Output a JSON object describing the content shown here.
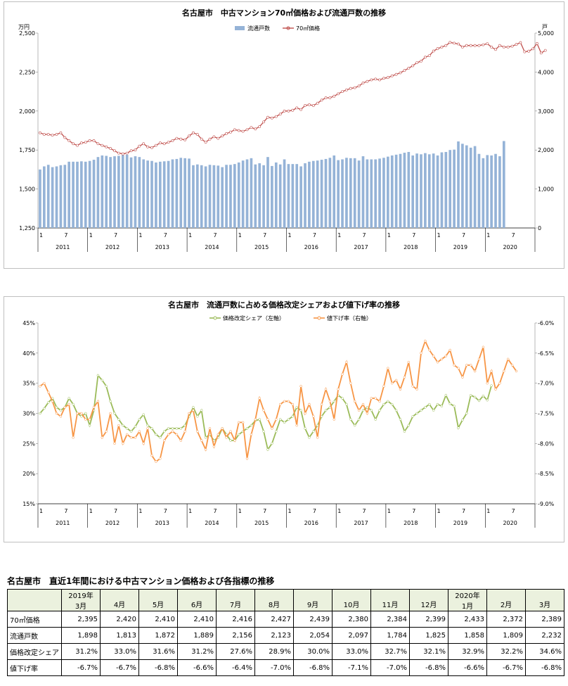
{
  "chart_data": [
    {
      "type": "bar+line",
      "title": "名古屋市　中古マンション70㎡価格および流通戸数の推移",
      "left_unit": "万円",
      "right_unit": "戸",
      "left_ylim": [
        1250,
        2500
      ],
      "left_ticks": [
        "1,250",
        "1,500",
        "1,750",
        "2,000",
        "2,250",
        "2,500"
      ],
      "right_ylim": [
        0,
        5000
      ],
      "right_ticks": [
        "0",
        "1,000",
        "2,000",
        "3,000",
        "4,000",
        "5,000"
      ],
      "legend": [
        "流通戸数",
        "70㎡価格"
      ],
      "x_month_labels": [
        "1",
        "7",
        "1",
        "7",
        "1",
        "7",
        "1",
        "7",
        "1",
        "7",
        "1",
        "7",
        "1",
        "7",
        "1",
        "7",
        "1",
        "7",
        "1",
        "7"
      ],
      "x_year_labels": [
        "2011",
        "2012",
        "2013",
        "2014",
        "2015",
        "2016",
        "2017",
        "2018",
        "2019",
        "2020"
      ],
      "series": [
        {
          "name": "流通戸数",
          "kind": "bar",
          "axis": "right",
          "color": "#95b3d7",
          "values": [
            1500,
            1580,
            1620,
            1560,
            1580,
            1610,
            1620,
            1700,
            1700,
            1700,
            1710,
            1700,
            1720,
            1750,
            1820,
            1860,
            1850,
            1820,
            1840,
            1850,
            1870,
            1880,
            1810,
            1840,
            1820,
            1760,
            1730,
            1720,
            1680,
            1700,
            1710,
            1720,
            1760,
            1770,
            1800,
            1790,
            1780,
            1610,
            1630,
            1610,
            1580,
            1620,
            1610,
            1600,
            1560,
            1620,
            1620,
            1640,
            1680,
            1730,
            1760,
            1790,
            1630,
            1660,
            1610,
            1820,
            1590,
            1680,
            1630,
            1760,
            1640,
            1640,
            1640,
            1580,
            1660,
            1700,
            1720,
            1730,
            1750,
            1770,
            1800,
            1860,
            1740,
            1760,
            1800,
            1790,
            1790,
            1730,
            1840,
            1760,
            1760,
            1760,
            1780,
            1800,
            1830,
            1860,
            1880,
            1900,
            1930,
            1950,
            1860,
            1910,
            1890,
            1920,
            1890,
            1910,
            1860,
            1940,
            1950,
            2000,
            2010,
            2220,
            2160,
            2120,
            2060,
            2100,
            1900,
            1790,
            1870,
            1860,
            1900,
            1840,
            2230
          ]
        },
        {
          "name": "70㎡価格",
          "kind": "line",
          "axis": "left",
          "color": "#c0504d",
          "values": [
            1860,
            1850,
            1850,
            1845,
            1850,
            1860,
            1830,
            1810,
            1790,
            1780,
            1795,
            1800,
            1810,
            1810,
            1790,
            1780,
            1770,
            1760,
            1745,
            1730,
            1725,
            1730,
            1745,
            1750,
            1775,
            1790,
            1770,
            1765,
            1780,
            1795,
            1790,
            1800,
            1810,
            1825,
            1820,
            1815,
            1840,
            1860,
            1850,
            1820,
            1800,
            1820,
            1835,
            1825,
            1840,
            1855,
            1865,
            1880,
            1875,
            1870,
            1880,
            1895,
            1885,
            1900,
            1930,
            1960,
            1955,
            1965,
            1980,
            2000,
            2000,
            2005,
            2020,
            2010,
            2035,
            2040,
            2035,
            2050,
            2070,
            2085,
            2085,
            2095,
            2110,
            2125,
            2135,
            2145,
            2150,
            2160,
            2180,
            2190,
            2200,
            2205,
            2200,
            2210,
            2215,
            2225,
            2235,
            2245,
            2260,
            2275,
            2290,
            2310,
            2320,
            2345,
            2355,
            2385,
            2400,
            2410,
            2420,
            2440,
            2435,
            2430,
            2410,
            2420,
            2420,
            2420,
            2420,
            2425,
            2432,
            2410,
            2395,
            2420,
            2410,
            2410,
            2416,
            2427,
            2439,
            2380,
            2384,
            2399,
            2433,
            2372,
            2389
          ]
        }
      ]
    },
    {
      "type": "line",
      "title": "名古屋市　流通戸数に占める価格改定シェアおよび値下げ率の推移",
      "left_ylim": [
        15,
        45
      ],
      "left_ticks": [
        "15%",
        "20%",
        "25%",
        "30%",
        "35%",
        "40%",
        "45%"
      ],
      "right_ylim": [
        -9.0,
        -6.0
      ],
      "right_ticks": [
        "-9.0%",
        "-8.5%",
        "-8.0%",
        "-7.5%",
        "-7.0%",
        "-6.5%",
        "-6.0%"
      ],
      "legend": [
        "価格改定シェア（左軸）",
        "値下げ率（右軸）"
      ],
      "x_month_labels": [
        "1",
        "7",
        "1",
        "7",
        "1",
        "7",
        "1",
        "7",
        "1",
        "7",
        "1",
        "7",
        "1",
        "7",
        "1",
        "7",
        "1",
        "7",
        "1",
        "7"
      ],
      "x_year_labels": [
        "2011",
        "2012",
        "2013",
        "2014",
        "2015",
        "2016",
        "2017",
        "2018",
        "2019",
        "2020"
      ],
      "series": [
        {
          "name": "価格改定シェア（左軸）",
          "axis": "left",
          "color": "#9bbb59",
          "values": [
            30.0,
            30.8,
            31.8,
            32.5,
            31.0,
            30.5,
            31.0,
            32.5,
            31.5,
            30.0,
            29.5,
            30.0,
            28.0,
            30.5,
            36.3,
            35.5,
            34.5,
            32.0,
            30.0,
            29.0,
            28.0,
            27.5,
            27.0,
            27.8,
            29.0,
            29.8,
            28.0,
            27.5,
            26.5,
            26.0,
            27.0,
            27.5,
            27.5,
            27.5,
            27.5,
            28.0,
            29.5,
            31.0,
            29.5,
            30.5,
            26.0,
            26.5,
            25.5,
            26.0,
            27.5,
            26.5,
            25.5,
            25.5,
            26.5,
            27.0,
            27.5,
            28.0,
            28.8,
            29.0,
            27.0,
            24.0,
            25.0,
            27.0,
            29.0,
            28.5,
            29.0,
            29.5,
            31.0,
            30.5,
            27.5,
            26.0,
            27.0,
            28.0,
            29.5,
            30.5,
            31.0,
            32.0,
            33.0,
            32.5,
            31.5,
            29.0,
            28.0,
            29.0,
            30.5,
            31.0,
            30.5,
            29.0,
            30.5,
            31.5,
            32.0,
            31.5,
            30.5,
            29.0,
            27.0,
            28.0,
            29.5,
            30.0,
            30.5,
            31.0,
            31.5,
            30.5,
            31.5,
            31.2,
            33.0,
            31.6,
            31.2,
            27.6,
            28.9,
            30.0,
            33.0,
            32.7,
            32.1,
            32.9,
            32.2,
            34.6
          ]
        },
        {
          "name": "値下げ率（右軸）",
          "axis": "right",
          "color": "#f79646",
          "values": [
            -7.05,
            -7.0,
            -7.15,
            -7.3,
            -7.5,
            -7.55,
            -7.4,
            -7.35,
            -7.9,
            -7.5,
            -7.5,
            -7.6,
            -7.6,
            -7.4,
            -7.3,
            -7.9,
            -7.8,
            -7.5,
            -8.0,
            -7.7,
            -8.0,
            -7.85,
            -7.9,
            -7.9,
            -7.8,
            -8.0,
            -7.75,
            -8.2,
            -8.3,
            -8.25,
            -7.95,
            -7.85,
            -7.8,
            -7.85,
            -7.95,
            -7.8,
            -7.5,
            -7.45,
            -7.8,
            -7.95,
            -8.1,
            -7.75,
            -8.05,
            -7.85,
            -7.75,
            -7.9,
            -7.8,
            -7.95,
            -7.65,
            -7.65,
            -8.25,
            -7.85,
            -7.6,
            -7.25,
            -7.45,
            -7.6,
            -7.75,
            -7.6,
            -7.35,
            -7.3,
            -7.3,
            -7.35,
            -7.7,
            -7.05,
            -7.5,
            -7.35,
            -7.55,
            -7.9,
            -7.35,
            -7.1,
            -7.3,
            -7.6,
            -7.1,
            -6.85,
            -6.65,
            -7.0,
            -7.3,
            -7.45,
            -7.35,
            -7.5,
            -7.25,
            -7.25,
            -7.3,
            -7.05,
            -6.75,
            -7.0,
            -6.95,
            -7.1,
            -6.9,
            -6.65,
            -7.05,
            -7.1,
            -6.5,
            -6.3,
            -6.45,
            -6.55,
            -6.65,
            -6.6,
            -6.55,
            -6.45,
            -6.7,
            -6.75,
            -6.9,
            -6.7,
            -6.7,
            -6.8,
            -6.6,
            -6.4,
            -7.0,
            -6.8,
            -7.1,
            -7.0,
            -6.8,
            -6.6,
            -6.7,
            -6.8
          ]
        }
      ]
    }
  ],
  "table": {
    "title": "名古屋市　直近1年間における中古マンション価格および各指標の推移",
    "header": {
      "year_labels": [
        "2019年",
        "",
        "",
        "",
        "",
        "",
        "",
        "",
        "",
        "",
        "2020年",
        "",
        ""
      ],
      "months": [
        "3月",
        "4月",
        "5月",
        "6月",
        "7月",
        "8月",
        "9月",
        "10月",
        "11月",
        "12月",
        "1月",
        "2月",
        "3月"
      ]
    },
    "rows": [
      {
        "label": "70㎡価格",
        "values": [
          "2,395",
          "2,420",
          "2,410",
          "2,410",
          "2,416",
          "2,427",
          "2,439",
          "2,380",
          "2,384",
          "2,399",
          "2,433",
          "2,372",
          "2,389"
        ]
      },
      {
        "label": "流通戸数",
        "values": [
          "1,898",
          "1,813",
          "1,872",
          "1,889",
          "2,156",
          "2,123",
          "2,054",
          "2,097",
          "1,784",
          "1,825",
          "1,858",
          "1,809",
          "2,232"
        ]
      },
      {
        "label": "価格改定シェア",
        "values": [
          "31.2%",
          "33.0%",
          "31.6%",
          "31.2%",
          "27.6%",
          "28.9%",
          "30.0%",
          "33.0%",
          "32.7%",
          "32.1%",
          "32.9%",
          "32.2%",
          "34.6%"
        ]
      },
      {
        "label": "値下げ率",
        "values": [
          "-6.7%",
          "-6.7%",
          "-6.8%",
          "-6.6%",
          "-6.4%",
          "-7.0%",
          "-6.8%",
          "-7.1%",
          "-7.0%",
          "-6.8%",
          "-6.6%",
          "-6.7%",
          "-6.8%"
        ]
      }
    ]
  }
}
